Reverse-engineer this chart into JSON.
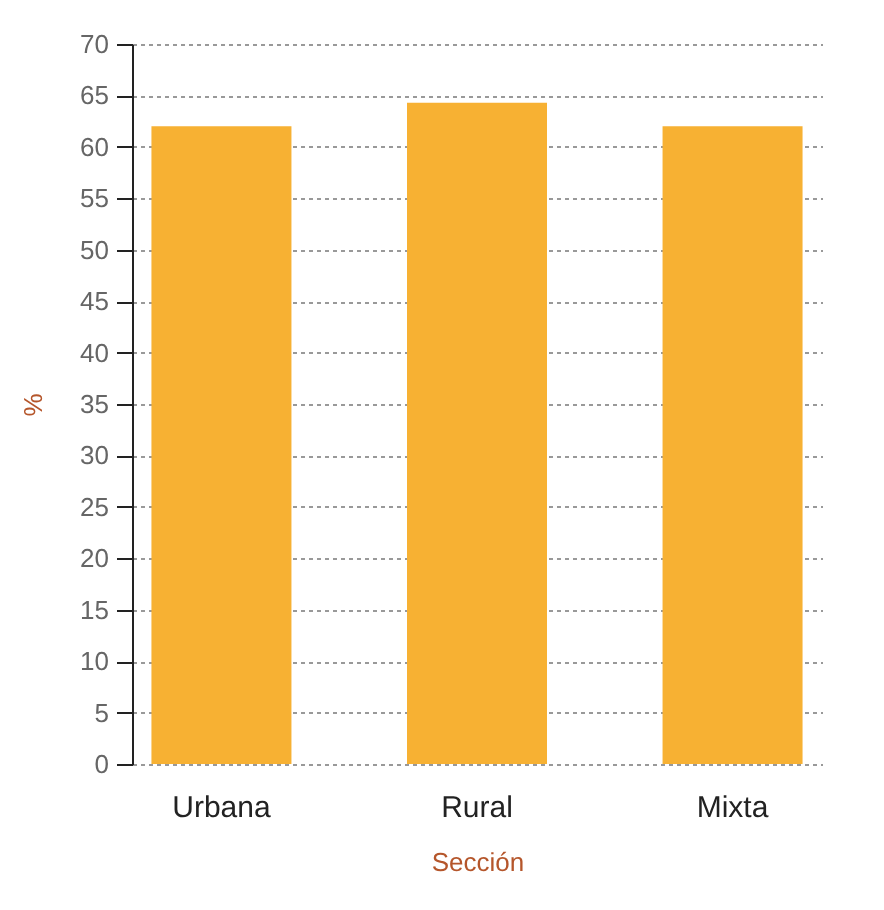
{
  "chart_data": {
    "type": "bar",
    "xlabel": "Sección",
    "ylabel": "%",
    "categories": [
      "Urbana",
      "Rural",
      "Mixta"
    ],
    "values": [
      62,
      64.3,
      62
    ],
    "color": "#f7b133",
    "ylim": [
      0,
      70
    ],
    "yticks": [
      0,
      5,
      10,
      15,
      20,
      25,
      30,
      35,
      40,
      45,
      50,
      55,
      60,
      65,
      70
    ],
    "grid": "y"
  }
}
